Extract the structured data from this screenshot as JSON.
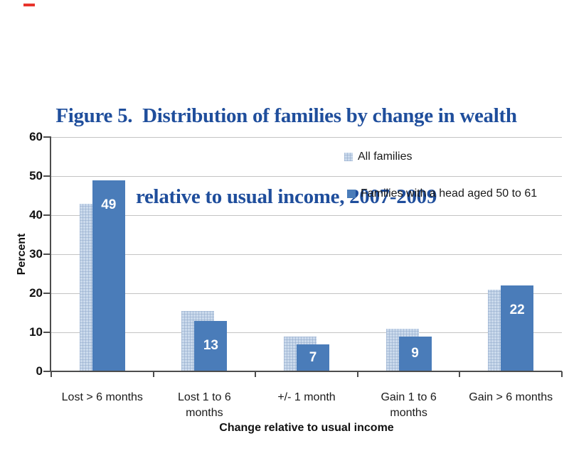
{
  "colors": {
    "title_blue": "#1F4E9C",
    "bar_light_fill": "#CBDAEC",
    "bar_light_pattern_line": "#8CA5C8",
    "bar_dark_fill": "#4A7CB9",
    "gridline": "#C4C4C4",
    "axis_line": "#4D4D4D",
    "text_dark": "#1A1A1A",
    "data_label_text": "#FFFFFF",
    "red_mark": "#E8342C"
  },
  "title": {
    "line1": "Figure 5.  Distribution of families by change in wealth",
    "line2": "relative to usual income, 2007-2009"
  },
  "legend": {
    "items": [
      {
        "label": "All families",
        "swatch": "light-blue-pattern-square"
      },
      {
        "label": "Families with a head aged 50 to 61",
        "swatch": "solid-blue-square"
      }
    ]
  },
  "y_axis": {
    "title": "Percent",
    "tick_labels": [
      "0",
      "10",
      "20",
      "30",
      "40",
      "50",
      "60"
    ]
  },
  "x_axis": {
    "title": "Change relative to usual income",
    "tick_line_groups": [
      [
        "Lost > 6 months"
      ],
      [
        "Lost 1 to 6",
        "months"
      ],
      [
        "+/- 1 month"
      ],
      [
        "Gain 1 to 6",
        "months"
      ],
      [
        "Gain > 6 months"
      ]
    ]
  },
  "chart_data": {
    "type": "bar",
    "title": "Figure 5. Distribution of families by change in wealth relative to usual income, 2007-2009",
    "categories": [
      "Lost > 6 months",
      "Lost 1 to 6 months",
      "+/- 1 month",
      "Gain 1 to 6 months",
      "Gain > 6 months"
    ],
    "series": [
      {
        "name": "All families",
        "values": [
          43,
          15.5,
          9,
          11,
          21
        ],
        "style": "light-blue-pattern",
        "data_labels_shown": false
      },
      {
        "name": "Families with a head aged 50 to 61",
        "values": [
          49,
          13,
          7,
          9,
          22
        ],
        "style": "solid-blue",
        "data_labels_shown": true,
        "data_labels": [
          "49",
          "13",
          "7",
          "9",
          "22"
        ]
      }
    ],
    "xlabel": "Change relative to usual income",
    "ylabel": "Percent",
    "ylim": [
      0,
      60
    ],
    "ytick_interval": 10,
    "grid": true,
    "legend_position": "inside-top-right",
    "bar_layout": "overlapped"
  }
}
